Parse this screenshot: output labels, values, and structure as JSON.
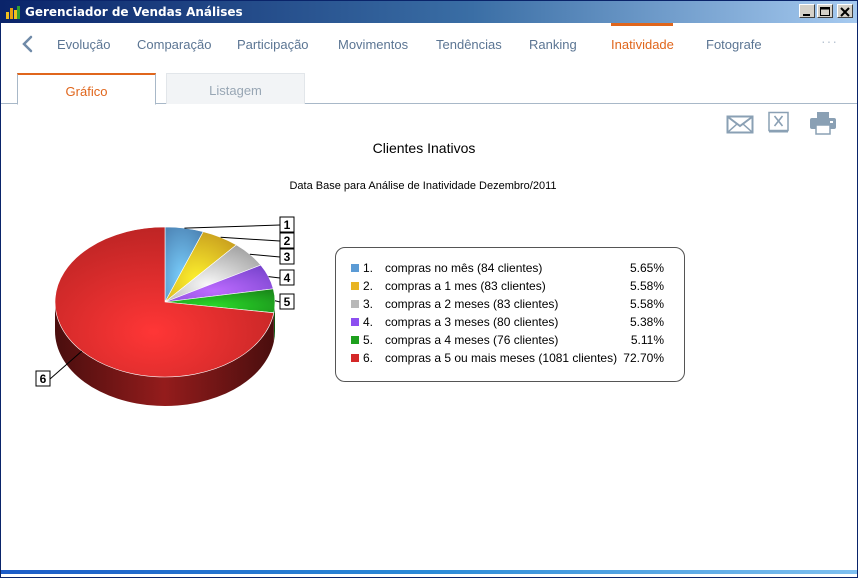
{
  "window": {
    "title": "Gerenciador de Vendas Análises"
  },
  "nav": {
    "tabs": [
      {
        "label": "Evolução"
      },
      {
        "label": "Comparação"
      },
      {
        "label": "Participação"
      },
      {
        "label": "Movimentos"
      },
      {
        "label": "Tendências"
      },
      {
        "label": "Ranking"
      },
      {
        "label": "Inatividade",
        "active": true
      },
      {
        "label": "Fotografe"
      }
    ],
    "more": "···"
  },
  "subtabs": [
    {
      "label": "Gráfico",
      "active": true
    },
    {
      "label": "Listagem"
    }
  ],
  "toolbar": [
    "email-icon",
    "excel-icon",
    "print-icon"
  ],
  "chart_data": {
    "type": "pie",
    "title": "Clientes Inativos",
    "subtitle": "Data Base para Análise de Inatividade Dezembro/2011",
    "slices": [
      {
        "index": "1",
        "label": "1.",
        "name": "compras no mês (84 clientes)",
        "percent": "5.65%",
        "value": 5.65,
        "color": "#5b9bd5"
      },
      {
        "index": "2",
        "label": "2.",
        "name": "compras a 1 mes (83 clientes)",
        "percent": "5.58%",
        "value": 5.58,
        "color": "#e8b422"
      },
      {
        "index": "3",
        "label": "3.",
        "name": "compras a 2 meses (83 clientes)",
        "percent": "5.58%",
        "value": 5.58,
        "color": "#b8b8b8"
      },
      {
        "index": "4",
        "label": "4.",
        "name": "compras a 3 meses (80 clientes)",
        "percent": "5.38%",
        "value": 5.38,
        "color": "#8c4ff0"
      },
      {
        "index": "5",
        "label": "5.",
        "name": "compras a 4 meses (76 clientes)",
        "percent": "5.11%",
        "value": 5.11,
        "color": "#1ea01e"
      },
      {
        "index": "6",
        "label": "6.",
        "name": "compras a 5 ou mais meses (1081 clientes)",
        "percent": "72.70%",
        "value": 72.7,
        "color": "#d42828"
      }
    ]
  }
}
